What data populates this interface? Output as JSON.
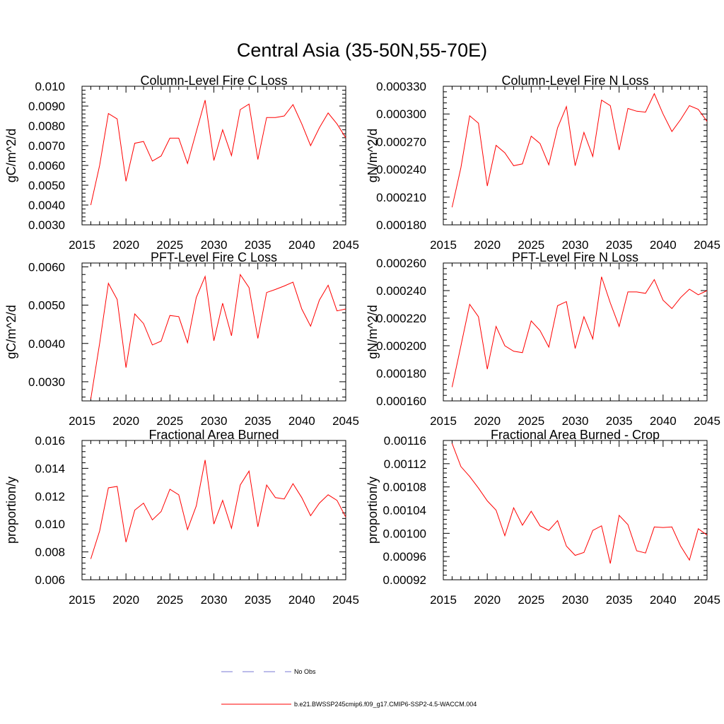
{
  "page": {
    "title": "Central Asia (35-50N,55-70E)"
  },
  "chart_data": [
    {
      "type": "line",
      "title": "Column-Level Fire C Loss",
      "ylabel": "gC/m^2/d",
      "xlim": [
        2015,
        2045
      ],
      "ylim": [
        0.003,
        0.01
      ],
      "xticks": [
        "2015",
        "2020",
        "2025",
        "2030",
        "2035",
        "2040",
        "2045"
      ],
      "yticks": [
        "0.0030",
        "0.0040",
        "0.0050",
        "0.0060",
        "0.0070",
        "0.0080",
        "0.0090",
        "0.010"
      ],
      "x": [
        2016,
        2017,
        2018,
        2019,
        2020,
        2021,
        2022,
        2023,
        2024,
        2025,
        2026,
        2027,
        2028,
        2029,
        2030,
        2031,
        2032,
        2033,
        2034,
        2035,
        2036,
        2037,
        2038,
        2039,
        2040,
        2041,
        2042,
        2043,
        2044,
        2045
      ],
      "series": [
        {
          "name": "b.e21.BWSSP245cmip6.f09_g17.CMIP6-SSP2-4.5-WACCM.004",
          "color": "#ff0000",
          "values": [
            0.004,
            0.006,
            0.00862,
            0.00835,
            0.0052,
            0.00712,
            0.00721,
            0.00622,
            0.00648,
            0.00738,
            0.00738,
            0.0061,
            0.0077,
            0.0093,
            0.00625,
            0.0078,
            0.0065,
            0.00882,
            0.0091,
            0.0063,
            0.00842,
            0.00842,
            0.0085,
            0.00907,
            0.0081,
            0.007,
            0.0079,
            0.00865,
            0.0081,
            0.0074
          ]
        }
      ]
    },
    {
      "type": "line",
      "title": "Column-Level Fire N Loss",
      "ylabel": "gN/m^2/d",
      "xlim": [
        2015,
        2045
      ],
      "ylim": [
        0.00018,
        0.00033
      ],
      "xticks": [
        "2015",
        "2020",
        "2025",
        "2030",
        "2035",
        "2040",
        "2045"
      ],
      "yticks": [
        "0.000180",
        "0.000210",
        "0.000240",
        "0.000270",
        "0.000300",
        "0.000330"
      ],
      "x": [
        2016,
        2017,
        2018,
        2019,
        2020,
        2021,
        2022,
        2023,
        2024,
        2025,
        2026,
        2027,
        2028,
        2029,
        2030,
        2031,
        2032,
        2033,
        2034,
        2035,
        2036,
        2037,
        2038,
        2039,
        2040,
        2041,
        2042,
        2043,
        2044,
        2045
      ],
      "series": [
        {
          "name": "b.e21.BWSSP245cmip6.f09_g17.CMIP6-SSP2-4.5-WACCM.004",
          "color": "#ff0000",
          "values": [
            0.000199,
            0.000242,
            0.000298,
            0.00029,
            0.000222,
            0.000266,
            0.000258,
            0.000244,
            0.000246,
            0.000276,
            0.000268,
            0.000245,
            0.000285,
            0.000308,
            0.000244,
            0.00028,
            0.000254,
            0.000315,
            0.000309,
            0.000261,
            0.000306,
            0.000303,
            0.000302,
            0.000322,
            0.0003,
            0.000281,
            0.000294,
            0.000309,
            0.000305,
            0.000292
          ]
        }
      ]
    },
    {
      "type": "line",
      "title": "PFT-Level Fire C Loss",
      "ylabel": "gC/m^2/d",
      "xlim": [
        2015,
        2045
      ],
      "ylim": [
        0.0025,
        0.0061
      ],
      "xticks": [
        "2015",
        "2020",
        "2025",
        "2030",
        "2035",
        "2040",
        "2045"
      ],
      "yticks": [
        "0.0030",
        "0.0040",
        "0.0050",
        "0.0060"
      ],
      "x": [
        2016,
        2017,
        2018,
        2019,
        2020,
        2021,
        2022,
        2023,
        2024,
        2025,
        2026,
        2027,
        2028,
        2029,
        2030,
        2031,
        2032,
        2033,
        2034,
        2035,
        2036,
        2037,
        2038,
        2039,
        2040,
        2041,
        2042,
        2043,
        2044,
        2045
      ],
      "series": [
        {
          "name": "b.e21.BWSSP245cmip6.f09_g17.CMIP6-SSP2-4.5-WACCM.004",
          "color": "#ff0000",
          "values": [
            0.00255,
            0.004,
            0.00557,
            0.00515,
            0.00337,
            0.00477,
            0.00452,
            0.00396,
            0.00406,
            0.00473,
            0.0047,
            0.00402,
            0.0052,
            0.00575,
            0.00407,
            0.00505,
            0.0042,
            0.0058,
            0.00546,
            0.00413,
            0.00533,
            0.00541,
            0.0055,
            0.0056,
            0.0049,
            0.00445,
            0.00513,
            0.00552,
            0.00485,
            0.0049
          ]
        }
      ]
    },
    {
      "type": "line",
      "title": "PFT-Level Fire N Loss",
      "ylabel": "gN/m^2/d",
      "xlim": [
        2015,
        2045
      ],
      "ylim": [
        0.00016,
        0.00026
      ],
      "xticks": [
        "2015",
        "2020",
        "2025",
        "2030",
        "2035",
        "2040",
        "2045"
      ],
      "yticks": [
        "0.000160",
        "0.000180",
        "0.000200",
        "0.000220",
        "0.000240",
        "0.000260"
      ],
      "x": [
        2016,
        2017,
        2018,
        2019,
        2020,
        2021,
        2022,
        2023,
        2024,
        2025,
        2026,
        2027,
        2028,
        2029,
        2030,
        2031,
        2032,
        2033,
        2034,
        2035,
        2036,
        2037,
        2038,
        2039,
        2040,
        2041,
        2042,
        2043,
        2044,
        2045
      ],
      "series": [
        {
          "name": "b.e21.BWSSP245cmip6.f09_g17.CMIP6-SSP2-4.5-WACCM.004",
          "color": "#ff0000",
          "values": [
            0.00017,
            0.0002,
            0.00023,
            0.000221,
            0.000183,
            0.000214,
            0.0002,
            0.000196,
            0.000195,
            0.000218,
            0.000211,
            0.000199,
            0.000229,
            0.000232,
            0.000198,
            0.000221,
            0.000205,
            0.00025,
            0.000231,
            0.000214,
            0.000239,
            0.000239,
            0.000238,
            0.000248,
            0.000233,
            0.000227,
            0.000235,
            0.000241,
            0.000237,
            0.00024
          ]
        }
      ]
    },
    {
      "type": "line",
      "title": "Fractional Area Burned",
      "ylabel": "proportion/y",
      "xlim": [
        2015,
        2045
      ],
      "ylim": [
        0.006,
        0.016
      ],
      "xticks": [
        "2015",
        "2020",
        "2025",
        "2030",
        "2035",
        "2040",
        "2045"
      ],
      "yticks": [
        "0.006",
        "0.008",
        "0.010",
        "0.012",
        "0.014",
        "0.016"
      ],
      "x": [
        2016,
        2017,
        2018,
        2019,
        2020,
        2021,
        2022,
        2023,
        2024,
        2025,
        2026,
        2027,
        2028,
        2029,
        2030,
        2031,
        2032,
        2033,
        2034,
        2035,
        2036,
        2037,
        2038,
        2039,
        2040,
        2041,
        2042,
        2043,
        2044,
        2045
      ],
      "series": [
        {
          "name": "b.e21.BWSSP245cmip6.f09_g17.CMIP6-SSP2-4.5-WACCM.004",
          "color": "#ff0000",
          "values": [
            0.0075,
            0.0095,
            0.0126,
            0.0127,
            0.0087,
            0.011,
            0.0115,
            0.0103,
            0.0109,
            0.0125,
            0.0121,
            0.0096,
            0.0113,
            0.0146,
            0.01,
            0.0117,
            0.0097,
            0.0128,
            0.0138,
            0.0098,
            0.0128,
            0.0119,
            0.0118,
            0.0129,
            0.0119,
            0.0106,
            0.0115,
            0.0121,
            0.0117,
            0.0105
          ]
        }
      ]
    },
    {
      "type": "line",
      "title": "Fractional Area Burned - Crop",
      "ylabel": "proportion/y",
      "xlim": [
        2015,
        2045
      ],
      "ylim": [
        0.00092,
        0.00116
      ],
      "xticks": [
        "2015",
        "2020",
        "2025",
        "2030",
        "2035",
        "2040",
        "2045"
      ],
      "yticks": [
        "0.00092",
        "0.00096",
        "0.00100",
        "0.00104",
        "0.00108",
        "0.00112",
        "0.00116"
      ],
      "x": [
        2016,
        2017,
        2018,
        2019,
        2020,
        2021,
        2022,
        2023,
        2024,
        2025,
        2026,
        2027,
        2028,
        2029,
        2030,
        2031,
        2032,
        2033,
        2034,
        2035,
        2036,
        2037,
        2038,
        2039,
        2040,
        2041,
        2042,
        2043,
        2044,
        2045
      ],
      "series": [
        {
          "name": "b.e21.BWSSP245cmip6.f09_g17.CMIP6-SSP2-4.5-WACCM.004",
          "color": "#ff0000",
          "values": [
            0.001155,
            0.001115,
            0.001098,
            0.001078,
            0.001056,
            0.00104,
            0.000996,
            0.001044,
            0.001014,
            0.001038,
            0.001013,
            0.001005,
            0.001022,
            0.000978,
            0.000962,
            0.000967,
            0.001005,
            0.001013,
            0.000948,
            0.001031,
            0.001015,
            0.00097,
            0.000966,
            0.001011,
            0.00101,
            0.001011,
            0.000978,
            0.000954,
            0.001008,
            0.000997
          ]
        }
      ]
    }
  ],
  "legend": {
    "items": [
      {
        "label": "No Obs",
        "color": "#7a7ad6",
        "dash": "dashed"
      },
      {
        "label": "b.e21.BWSSP245cmip6.f09_g17.CMIP6-SSP2-4.5-WACCM.004",
        "color": "#ff0000",
        "dash": "solid"
      }
    ]
  }
}
